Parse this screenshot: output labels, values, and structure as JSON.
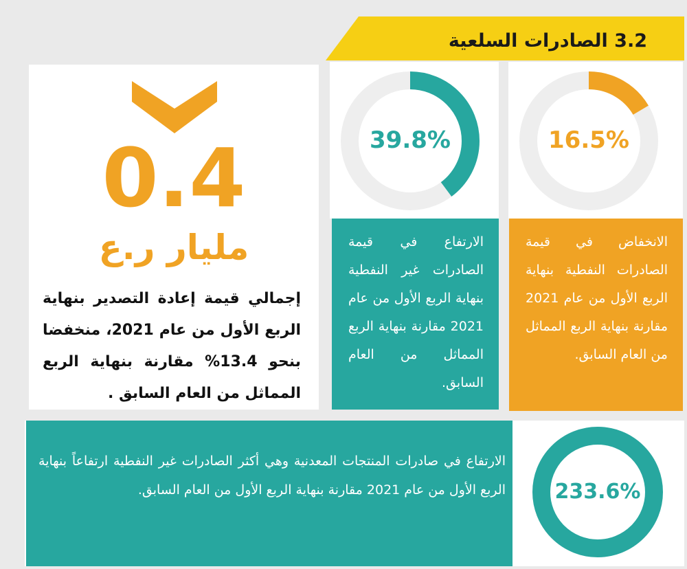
{
  "header": {
    "title": "3.2 الصادرات السلعية"
  },
  "reexport": {
    "value": "0.4",
    "unit": "مليار ر.ع",
    "description": "إجمالي قيمة إعادة التصدير بنهاية الربع الأول من عام 2021، منخفضا بنحو 13.4% مقارنة بنهاية الربع المماثل من العام السابق ."
  },
  "non_oil": {
    "percent_label": "39.8%",
    "percent_value": 39.8,
    "description": "الارتفاع في قيمة الصادرات غير النفطية بنهاية الربع الأول من عام 2021 مقارنة بنهاية الربع المماثل من العام السابق.",
    "color": "#27a79f"
  },
  "oil": {
    "percent_label": "16.5%",
    "percent_value": 16.5,
    "description": "الانخفاض في قيمة الصادرات النفطية بنهاية الربع الأول من عام 2021 مقارنة بنهاية الربع المماثل من العام السابق.",
    "color": "#f0a324"
  },
  "minerals": {
    "percent_label": "233.6%",
    "description": "الارتفاع في صادرات المنتجات المعدنية وهي أكثر الصادرات غير النفطية ارتفاعاً بنهاية الربع الأول من عام 2021 مقارنة بنهاية الربع الأول من العام السابق.",
    "color": "#27a79f"
  },
  "colors": {
    "accent_yellow": "#f6cf14",
    "teal": "#27a79f",
    "orange": "#f0a324",
    "ring_track": "#eeeeee"
  },
  "icons": {
    "down_indicator": "chevron-down-icon"
  }
}
